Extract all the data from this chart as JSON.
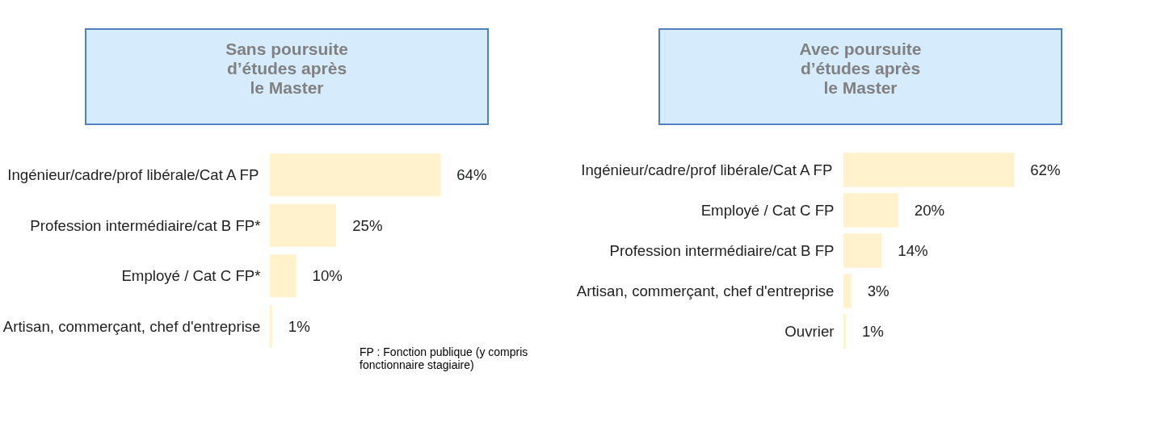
{
  "chart_data": [
    {
      "type": "bar",
      "orientation": "horizontal",
      "title": "Sans poursuite\nd’études après\nle Master",
      "categories": [
        "Ingénieur/cadre/prof libérale/Cat A FP",
        "Profession intermédiaire/cat B FP*",
        "Employé / Cat C FP*",
        "Artisan, commerçant, chef d'entreprise"
      ],
      "values": [
        64,
        25,
        10,
        1
      ],
      "value_labels": [
        "64%",
        "25%",
        "10%",
        "1%"
      ],
      "color": "#fff2cc",
      "tick_labels": "y",
      "grid": false,
      "annotations": [
        "FP : Fonction publique (y compris\nfonctionnaire stagiaire)"
      ]
    },
    {
      "type": "bar",
      "orientation": "horizontal",
      "title": "Avec poursuite\nd’études après\nle Master",
      "categories": [
        "Ingénieur/cadre/prof libérale/Cat A FP",
        "Employé / Cat C FP",
        "Profession intermédiaire/cat B FP",
        "Artisan, commerçant, chef d'entreprise",
        "Ouvrier"
      ],
      "values": [
        62,
        20,
        14,
        3,
        1
      ],
      "value_labels": [
        "62%",
        "20%",
        "14%",
        "3%",
        "1%"
      ],
      "color": "#fff2cc",
      "tick_labels": "y",
      "grid": false
    }
  ]
}
